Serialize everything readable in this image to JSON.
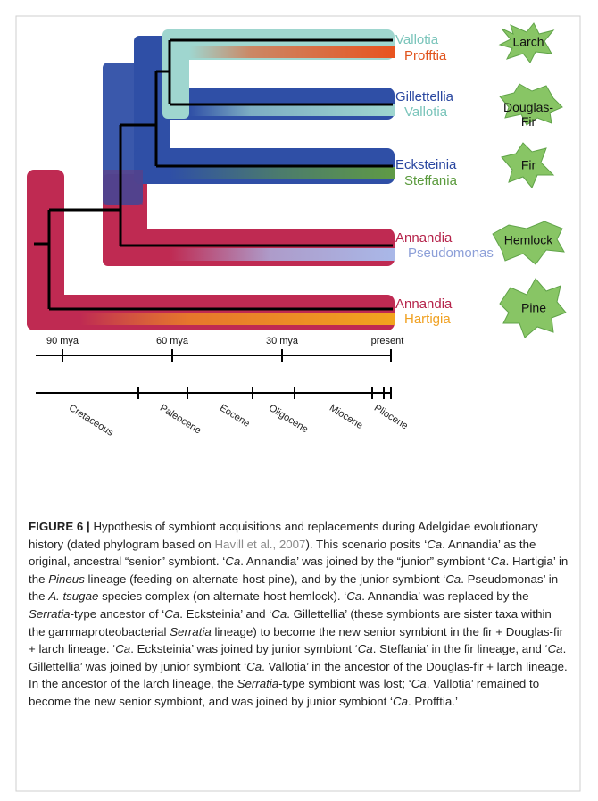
{
  "figure": {
    "tips": [
      {
        "senior": "Vallotia",
        "junior": "Profftia",
        "host": "Larch"
      },
      {
        "senior": "Gillettellia",
        "junior": "Vallotia",
        "host": "Douglas-Fir"
      },
      {
        "senior": "Ecksteinia",
        "junior": "Steffania",
        "host": "Fir"
      },
      {
        "senior": "Annandia",
        "junior": "Pseudomonas",
        "host": "Hemlock"
      },
      {
        "senior": "Annandia",
        "junior": "Hartigia",
        "host": "Pine"
      }
    ],
    "timeline": {
      "ages": [
        "90 mya",
        "60 mya",
        "30 mya",
        "present"
      ],
      "periods": [
        "Cretaceous",
        "Paleocene",
        "Eocene",
        "Oligocene",
        "Miocene",
        "Pliocene"
      ]
    }
  },
  "caption": {
    "label": "FIGURE 6 |",
    "runs": [
      " Hypothesis of symbiont acquisitions and replacements during Adelgidae evolutionary history (dated phylogram based on ",
      "Havill et al., 2007",
      "). This scenario posits ‘",
      "Ca",
      ". Annandia’ as the original, ancestral “senior” symbiont. ‘",
      "Ca",
      ". Annandia’ was joined by the “junior” symbiont ‘",
      "Ca",
      ". Hartigia’ in the ",
      "Pineus",
      " lineage (feeding on alternate-host pine), and by the junior symbiont ‘",
      "Ca",
      ". Pseudomonas’ in the ",
      "A. tsugae",
      " species complex (on alternate-host hemlock). ‘",
      "Ca",
      ". Annandia’ was replaced by the ",
      "Serratia",
      "-type ancestor of ‘",
      "Ca",
      ". Ecksteinia’ and ‘",
      "Ca",
      ". Gillettellia’ (these symbionts are sister taxa within the gammaproteobacterial ",
      "Serratia",
      " lineage) to become the new senior symbiont in the fir + Douglas-fir + larch lineage. ‘",
      "Ca",
      ". Ecksteinia’ was joined by junior symbiont ‘",
      "Ca",
      ". Steffania’ in the fir lineage, and ‘",
      "Ca",
      ". Gillettellia’ was joined by junior symbiont ‘",
      "Ca",
      ". Vallotia’ in the ancestor of the Douglas-fir + larch lineage. In the ancestor of the larch lineage, the ",
      "Serratia",
      "-type symbiont was lost; ‘",
      "Ca",
      ". Vallotia’ remained to become the new senior symbiont, and was joined by junior symbiont ‘",
      "Ca",
      ". Profftia.’"
    ]
  }
}
